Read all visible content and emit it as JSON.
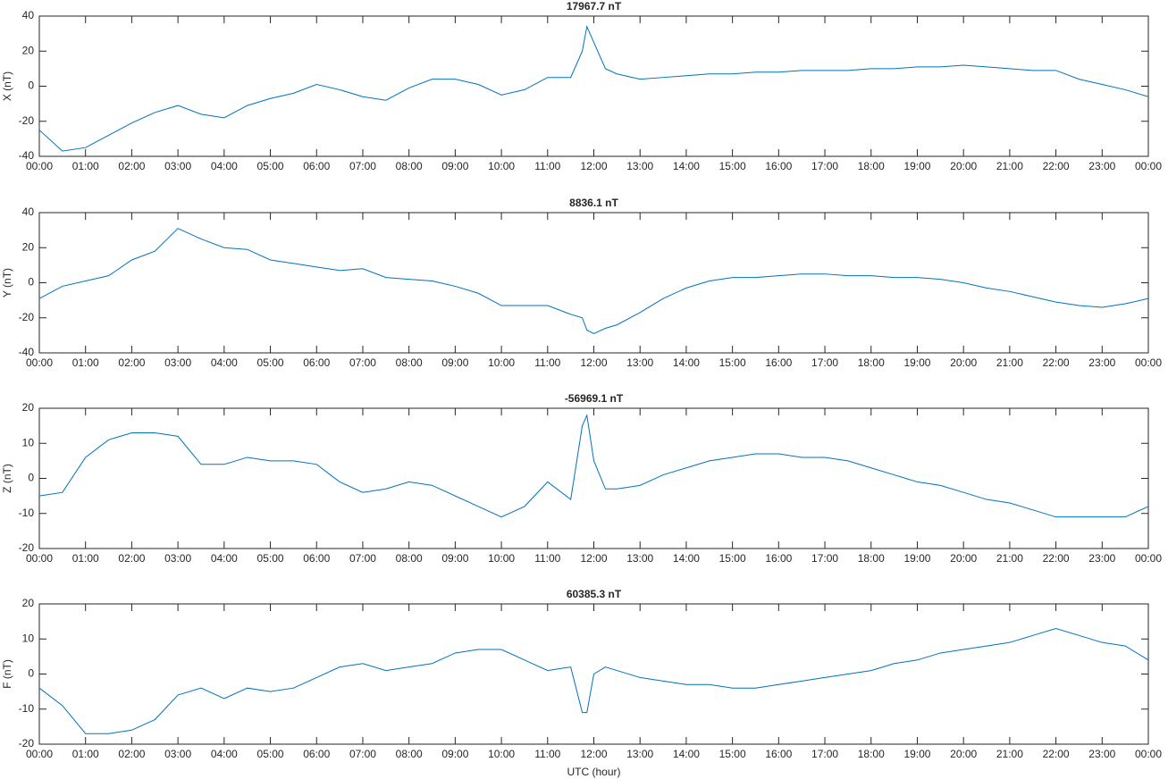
{
  "chart_data": [
    {
      "type": "line",
      "title": "17967.7 nT",
      "ylabel": "X (nT)",
      "color": "#0072bd",
      "x": [
        0,
        0.5,
        1,
        1.5,
        2,
        2.5,
        3,
        3.5,
        4,
        4.5,
        5,
        5.5,
        6,
        6.5,
        7,
        7.5,
        8,
        8.5,
        9,
        9.5,
        10,
        10.5,
        11,
        11.5,
        11.75,
        11.85,
        12,
        12.25,
        12.5,
        13,
        13.5,
        14,
        14.5,
        15,
        15.5,
        16,
        16.5,
        17,
        17.5,
        18,
        18.5,
        19,
        19.5,
        20,
        20.5,
        21,
        21.5,
        22,
        22.5,
        23,
        23.5,
        24
      ],
      "values": [
        -25,
        -37,
        -35,
        -28,
        -21,
        -15,
        -11,
        -16,
        -18,
        -11,
        -7,
        -4,
        1,
        -2,
        -6,
        -8,
        -1,
        4,
        4,
        1,
        -5,
        -2,
        5,
        5,
        20,
        34,
        25,
        10,
        7,
        4,
        5,
        6,
        7,
        7,
        8,
        8,
        9,
        9,
        9,
        10,
        10,
        11,
        11,
        12,
        11,
        10,
        9,
        9,
        4,
        1,
        -2,
        -6
      ],
      "xlim": [
        0,
        24
      ],
      "ylim": [
        -40,
        40
      ],
      "yticks": [
        -40,
        -20,
        0,
        20,
        40
      ],
      "xticks": [
        {
          "value": 0,
          "label": "00:00"
        },
        {
          "value": 1,
          "label": "01:00"
        },
        {
          "value": 2,
          "label": "02:00"
        },
        {
          "value": 3,
          "label": "03:00"
        },
        {
          "value": 4,
          "label": "04:00"
        },
        {
          "value": 5,
          "label": "05:00"
        },
        {
          "value": 6,
          "label": "06:00"
        },
        {
          "value": 7,
          "label": "07:00"
        },
        {
          "value": 8,
          "label": "08:00"
        },
        {
          "value": 9,
          "label": "09:00"
        },
        {
          "value": 10,
          "label": "10:00"
        },
        {
          "value": 11,
          "label": "11:00"
        },
        {
          "value": 12,
          "label": "12:00"
        },
        {
          "value": 13,
          "label": "13:00"
        },
        {
          "value": 14,
          "label": "14:00"
        },
        {
          "value": 15,
          "label": "15:00"
        },
        {
          "value": 16,
          "label": "16:00"
        },
        {
          "value": 17,
          "label": "17:00"
        },
        {
          "value": 18,
          "label": "18:00"
        },
        {
          "value": 19,
          "label": "19:00"
        },
        {
          "value": 20,
          "label": "20:00"
        },
        {
          "value": 21,
          "label": "21:00"
        },
        {
          "value": 22,
          "label": "22:00"
        },
        {
          "value": 23,
          "label": "23:00"
        },
        {
          "value": 24,
          "label": "00:00"
        }
      ]
    },
    {
      "type": "line",
      "title": "8836.1 nT",
      "ylabel": "Y (nT)",
      "color": "#0072bd",
      "x": [
        0,
        0.5,
        1,
        1.5,
        2,
        2.5,
        3,
        3.5,
        4,
        4.5,
        5,
        5.5,
        6,
        6.5,
        7,
        7.5,
        8,
        8.5,
        9,
        9.5,
        10,
        10.5,
        11,
        11.5,
        11.75,
        11.85,
        12,
        12.25,
        12.5,
        13,
        13.5,
        14,
        14.5,
        15,
        15.5,
        16,
        16.5,
        17,
        17.5,
        18,
        18.5,
        19,
        19.5,
        20,
        20.5,
        21,
        21.5,
        22,
        22.5,
        23,
        23.5,
        24
      ],
      "values": [
        -9,
        -2,
        1,
        4,
        13,
        18,
        31,
        25,
        20,
        19,
        13,
        11,
        9,
        7,
        8,
        3,
        2,
        1,
        -2,
        -6,
        -13,
        -13,
        -13,
        -18,
        -20,
        -27,
        -29,
        -26,
        -24,
        -17,
        -9,
        -3,
        1,
        3,
        3,
        4,
        5,
        5,
        4,
        4,
        3,
        3,
        2,
        0,
        -3,
        -5,
        -8,
        -11,
        -13,
        -14,
        -12,
        -9
      ],
      "xlim": [
        0,
        24
      ],
      "ylim": [
        -40,
        40
      ],
      "yticks": [
        -40,
        -20,
        0,
        20,
        40
      ],
      "xticks": [
        {
          "value": 0,
          "label": "00:00"
        },
        {
          "value": 1,
          "label": "01:00"
        },
        {
          "value": 2,
          "label": "02:00"
        },
        {
          "value": 3,
          "label": "03:00"
        },
        {
          "value": 4,
          "label": "04:00"
        },
        {
          "value": 5,
          "label": "05:00"
        },
        {
          "value": 6,
          "label": "06:00"
        },
        {
          "value": 7,
          "label": "07:00"
        },
        {
          "value": 8,
          "label": "08:00"
        },
        {
          "value": 9,
          "label": "09:00"
        },
        {
          "value": 10,
          "label": "10:00"
        },
        {
          "value": 11,
          "label": "11:00"
        },
        {
          "value": 12,
          "label": "12:00"
        },
        {
          "value": 13,
          "label": "13:00"
        },
        {
          "value": 14,
          "label": "14:00"
        },
        {
          "value": 15,
          "label": "15:00"
        },
        {
          "value": 16,
          "label": "16:00"
        },
        {
          "value": 17,
          "label": "17:00"
        },
        {
          "value": 18,
          "label": "18:00"
        },
        {
          "value": 19,
          "label": "19:00"
        },
        {
          "value": 20,
          "label": "20:00"
        },
        {
          "value": 21,
          "label": "21:00"
        },
        {
          "value": 22,
          "label": "22:00"
        },
        {
          "value": 23,
          "label": "23:00"
        },
        {
          "value": 24,
          "label": "00:00"
        }
      ]
    },
    {
      "type": "line",
      "title": "-56969.1 nT",
      "ylabel": "Z (nT)",
      "color": "#0072bd",
      "x": [
        0,
        0.5,
        1,
        1.5,
        2,
        2.5,
        3,
        3.5,
        4,
        4.5,
        5,
        5.5,
        6,
        6.5,
        7,
        7.5,
        8,
        8.5,
        9,
        9.5,
        10,
        10.5,
        11,
        11.5,
        11.75,
        11.85,
        12,
        12.25,
        12.5,
        13,
        13.5,
        14,
        14.5,
        15,
        15.5,
        16,
        16.5,
        17,
        17.5,
        18,
        18.5,
        19,
        19.5,
        20,
        20.5,
        21,
        21.5,
        22,
        22.5,
        23,
        23.5,
        24
      ],
      "values": [
        -5,
        -4,
        6,
        11,
        13,
        13,
        12,
        4,
        4,
        6,
        5,
        5,
        4,
        -1,
        -4,
        -3,
        -1,
        -2,
        -5,
        -8,
        -11,
        -8,
        -1,
        -6,
        15,
        18,
        5,
        -3,
        -3,
        -2,
        1,
        3,
        5,
        6,
        7,
        7,
        6,
        6,
        5,
        3,
        1,
        -1,
        -2,
        -4,
        -6,
        -7,
        -9,
        -11,
        -11,
        -11,
        -11,
        -8
      ],
      "xlim": [
        0,
        24
      ],
      "ylim": [
        -20,
        20
      ],
      "yticks": [
        -20,
        -10,
        0,
        10,
        20
      ],
      "xticks": [
        {
          "value": 0,
          "label": "00:00"
        },
        {
          "value": 1,
          "label": "01:00"
        },
        {
          "value": 2,
          "label": "02:00"
        },
        {
          "value": 3,
          "label": "03:00"
        },
        {
          "value": 4,
          "label": "04:00"
        },
        {
          "value": 5,
          "label": "05:00"
        },
        {
          "value": 6,
          "label": "06:00"
        },
        {
          "value": 7,
          "label": "07:00"
        },
        {
          "value": 8,
          "label": "08:00"
        },
        {
          "value": 9,
          "label": "09:00"
        },
        {
          "value": 10,
          "label": "10:00"
        },
        {
          "value": 11,
          "label": "11:00"
        },
        {
          "value": 12,
          "label": "12:00"
        },
        {
          "value": 13,
          "label": "13:00"
        },
        {
          "value": 14,
          "label": "14:00"
        },
        {
          "value": 15,
          "label": "15:00"
        },
        {
          "value": 16,
          "label": "16:00"
        },
        {
          "value": 17,
          "label": "17:00"
        },
        {
          "value": 18,
          "label": "18:00"
        },
        {
          "value": 19,
          "label": "19:00"
        },
        {
          "value": 20,
          "label": "20:00"
        },
        {
          "value": 21,
          "label": "21:00"
        },
        {
          "value": 22,
          "label": "22:00"
        },
        {
          "value": 23,
          "label": "23:00"
        },
        {
          "value": 24,
          "label": "00:00"
        }
      ]
    },
    {
      "type": "line",
      "title": "60385.3 nT",
      "ylabel": "F (nT)",
      "xlabel": "UTC (hour)",
      "color": "#0072bd",
      "x": [
        0,
        0.5,
        1,
        1.5,
        2,
        2.5,
        3,
        3.5,
        4,
        4.5,
        5,
        5.5,
        6,
        6.5,
        7,
        7.5,
        8,
        8.5,
        9,
        9.5,
        10,
        10.5,
        11,
        11.5,
        11.75,
        11.85,
        12,
        12.25,
        12.5,
        13,
        13.5,
        14,
        14.5,
        15,
        15.5,
        16,
        16.5,
        17,
        17.5,
        18,
        18.5,
        19,
        19.5,
        20,
        20.5,
        21,
        21.5,
        22,
        22.5,
        23,
        23.5,
        24
      ],
      "values": [
        -4,
        -9,
        -17,
        -17,
        -16,
        -13,
        -6,
        -4,
        -7,
        -4,
        -5,
        -4,
        -1,
        2,
        3,
        1,
        2,
        3,
        6,
        7,
        7,
        4,
        1,
        2,
        -11,
        -11,
        0,
        2,
        1,
        -1,
        -2,
        -3,
        -3,
        -4,
        -4,
        -3,
        -2,
        -1,
        0,
        1,
        3,
        4,
        6,
        7,
        8,
        9,
        11,
        13,
        11,
        9,
        8,
        4
      ],
      "xlim": [
        0,
        24
      ],
      "ylim": [
        -20,
        20
      ],
      "yticks": [
        -20,
        -10,
        0,
        10,
        20
      ],
      "xticks": [
        {
          "value": 0,
          "label": "00:00"
        },
        {
          "value": 1,
          "label": "01:00"
        },
        {
          "value": 2,
          "label": "02:00"
        },
        {
          "value": 3,
          "label": "03:00"
        },
        {
          "value": 4,
          "label": "04:00"
        },
        {
          "value": 5,
          "label": "05:00"
        },
        {
          "value": 6,
          "label": "06:00"
        },
        {
          "value": 7,
          "label": "07:00"
        },
        {
          "value": 8,
          "label": "08:00"
        },
        {
          "value": 9,
          "label": "09:00"
        },
        {
          "value": 10,
          "label": "10:00"
        },
        {
          "value": 11,
          "label": "11:00"
        },
        {
          "value": 12,
          "label": "12:00"
        },
        {
          "value": 13,
          "label": "13:00"
        },
        {
          "value": 14,
          "label": "14:00"
        },
        {
          "value": 15,
          "label": "15:00"
        },
        {
          "value": 16,
          "label": "16:00"
        },
        {
          "value": 17,
          "label": "17:00"
        },
        {
          "value": 18,
          "label": "18:00"
        },
        {
          "value": 19,
          "label": "19:00"
        },
        {
          "value": 20,
          "label": "20:00"
        },
        {
          "value": 21,
          "label": "21:00"
        },
        {
          "value": 22,
          "label": "22:00"
        },
        {
          "value": 23,
          "label": "23:00"
        },
        {
          "value": 24,
          "label": "00:00"
        }
      ]
    }
  ]
}
